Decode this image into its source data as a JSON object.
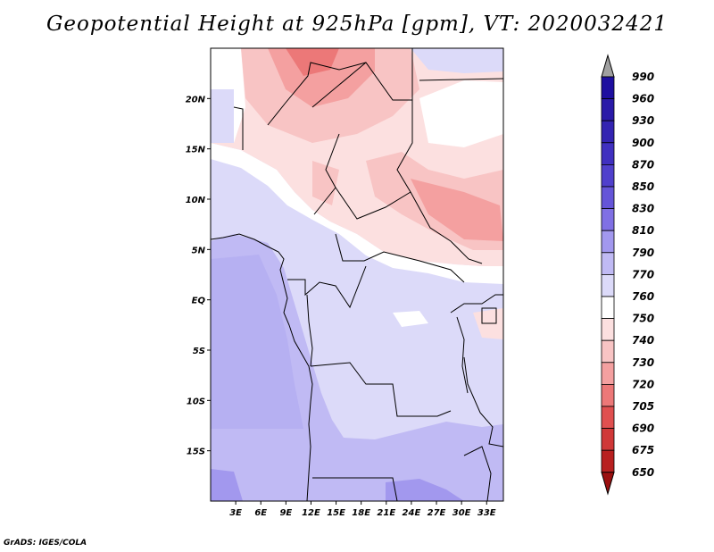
{
  "title": "Geopotential Height at 925hPa [gpm], VT: 2020032421",
  "footer": "GrADS: IGES/COLA",
  "map": {
    "lon_range": [
      0,
      35
    ],
    "lat_range": [
      -20,
      25
    ],
    "lat_ticks": [
      {
        "value": 20,
        "label": "20N"
      },
      {
        "value": 15,
        "label": "15N"
      },
      {
        "value": 10,
        "label": "10N"
      },
      {
        "value": 5,
        "label": "5N"
      },
      {
        "value": 0,
        "label": "EQ"
      },
      {
        "value": -5,
        "label": "5S"
      },
      {
        "value": -10,
        "label": "10S"
      },
      {
        "value": -15,
        "label": "15S"
      }
    ],
    "lon_ticks": [
      {
        "value": 3,
        "label": "3E"
      },
      {
        "value": 6,
        "label": "6E"
      },
      {
        "value": 9,
        "label": "9E"
      },
      {
        "value": 12,
        "label": "12E"
      },
      {
        "value": 15,
        "label": "15E"
      },
      {
        "value": 18,
        "label": "18E"
      },
      {
        "value": 21,
        "label": "21E"
      },
      {
        "value": 24,
        "label": "24E"
      },
      {
        "value": 27,
        "label": "27E"
      },
      {
        "value": 30,
        "label": "30E"
      },
      {
        "value": 33,
        "label": "33E"
      }
    ]
  },
  "colorbar": {
    "top_arrow_color": "#a0a0a0",
    "bottom_arrow_color": "#9b1010",
    "levels": [
      {
        "label": "990",
        "color": "#1e0fa0"
      },
      {
        "label": "960",
        "color": "#2a1aa8"
      },
      {
        "label": "930",
        "color": "#3424b2"
      },
      {
        "label": "900",
        "color": "#4030c0"
      },
      {
        "label": "870",
        "color": "#5040cc"
      },
      {
        "label": "850",
        "color": "#6555d8"
      },
      {
        "label": "830",
        "color": "#8070e4"
      },
      {
        "label": "810",
        "color": "#a298ee"
      },
      {
        "label": "790",
        "color": "#c0baf4"
      },
      {
        "label": "770",
        "color": "#dcdaf9"
      },
      {
        "label": "760",
        "color": "#ffffff"
      },
      {
        "label": "750",
        "color": "#fce0e0"
      },
      {
        "label": "740",
        "color": "#f8c4c4"
      },
      {
        "label": "730",
        "color": "#f4a0a0"
      },
      {
        "label": "720",
        "color": "#ec7878"
      },
      {
        "label": "705",
        "color": "#e05050"
      },
      {
        "label": "690",
        "color": "#d03838"
      },
      {
        "label": "675",
        "color": "#b82020"
      },
      {
        "label": "650",
        "color": "#9b1010"
      }
    ]
  }
}
